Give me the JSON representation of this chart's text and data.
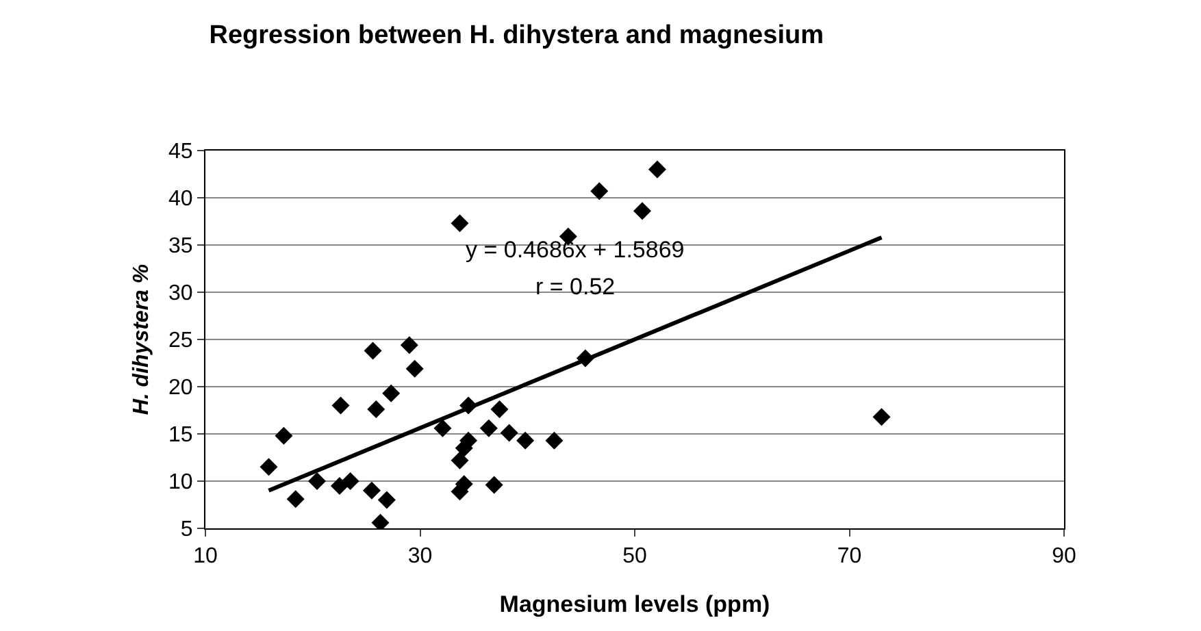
{
  "chart_data": {
    "type": "scatter",
    "title": "Regression between H. dihystera and magnesium",
    "xlabel": "Magnesium levels (ppm)",
    "ylabel": "H. dihystera %",
    "xlim": [
      10,
      90
    ],
    "xticks": [
      10,
      30,
      50,
      70,
      90
    ],
    "ylim": [
      5,
      45
    ],
    "yticks": [
      5,
      10,
      15,
      20,
      25,
      30,
      35,
      40,
      45
    ],
    "grid": "y",
    "marker": "diamond",
    "series": [
      {
        "color": "#000000",
        "x": [
          15.9,
          17.3,
          18.4,
          20.4,
          22.6,
          22.5,
          23.5,
          25.6,
          25.9,
          25.5,
          26.9,
          26.3,
          27.3,
          29,
          29.5,
          32.1,
          33.7,
          34.5,
          34.5,
          34.1,
          33.7,
          34.1,
          33.7,
          36.4,
          37.4,
          36.9,
          38.3,
          39.8,
          42.5,
          43.8,
          45.4,
          46.7,
          50.7,
          52.1,
          73
        ],
        "values": [
          11.5,
          14.8,
          8.1,
          10,
          18,
          9.5,
          10,
          23.8,
          17.6,
          9,
          8,
          5.6,
          19.3,
          24.4,
          21.9,
          15.6,
          37.3,
          18,
          14.3,
          13.5,
          12.2,
          9.7,
          8.9,
          15.6,
          17.6,
          9.6,
          15.1,
          14.3,
          14.3,
          35.9,
          23,
          40.7,
          38.6,
          43,
          16.8
        ]
      },
      {
        "type": "line",
        "color": "#000000",
        "x": [
          15.9,
          73
        ],
        "values": [
          9.0,
          35.8
        ],
        "marker": "none",
        "line_style": "solid"
      }
    ],
    "annotations": [
      "y = 0.4686x + 1.5869",
      "r = 0.52"
    ]
  }
}
